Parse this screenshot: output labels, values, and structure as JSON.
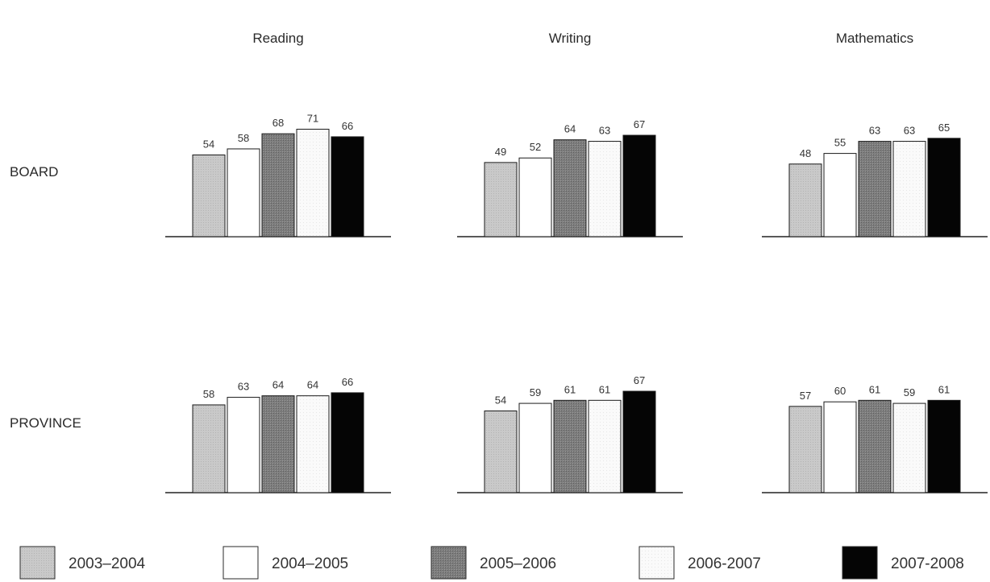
{
  "chart_data": {
    "type": "bar",
    "columns": [
      "Reading",
      "Writing",
      "Mathematics"
    ],
    "rows": [
      "BOARD",
      "PROVINCE"
    ],
    "series_names": [
      "2003–2004",
      "2004–2005",
      "2005–2006",
      "2006-2007",
      "2007-2008"
    ],
    "series_colors": [
      "#c8c8c8",
      "#ffffff",
      "#7a7a7a",
      "#f7f7f7",
      "#050505"
    ],
    "panels": [
      {
        "row": "BOARD",
        "column": "Reading",
        "values": [
          54,
          58,
          68,
          71,
          66
        ]
      },
      {
        "row": "BOARD",
        "column": "Writing",
        "values": [
          49,
          52,
          64,
          63,
          67
        ]
      },
      {
        "row": "BOARD",
        "column": "Mathematics",
        "values": [
          48,
          55,
          63,
          63,
          65
        ]
      },
      {
        "row": "PROVINCE",
        "column": "Reading",
        "values": [
          58,
          63,
          64,
          64,
          66
        ]
      },
      {
        "row": "PROVINCE",
        "column": "Writing",
        "values": [
          54,
          59,
          61,
          61,
          67
        ]
      },
      {
        "row": "PROVINCE",
        "column": "Mathematics",
        "values": [
          57,
          60,
          61,
          59,
          61
        ]
      }
    ],
    "ylim": [
      0,
      100
    ],
    "grid": false,
    "legend_position": "bottom"
  }
}
